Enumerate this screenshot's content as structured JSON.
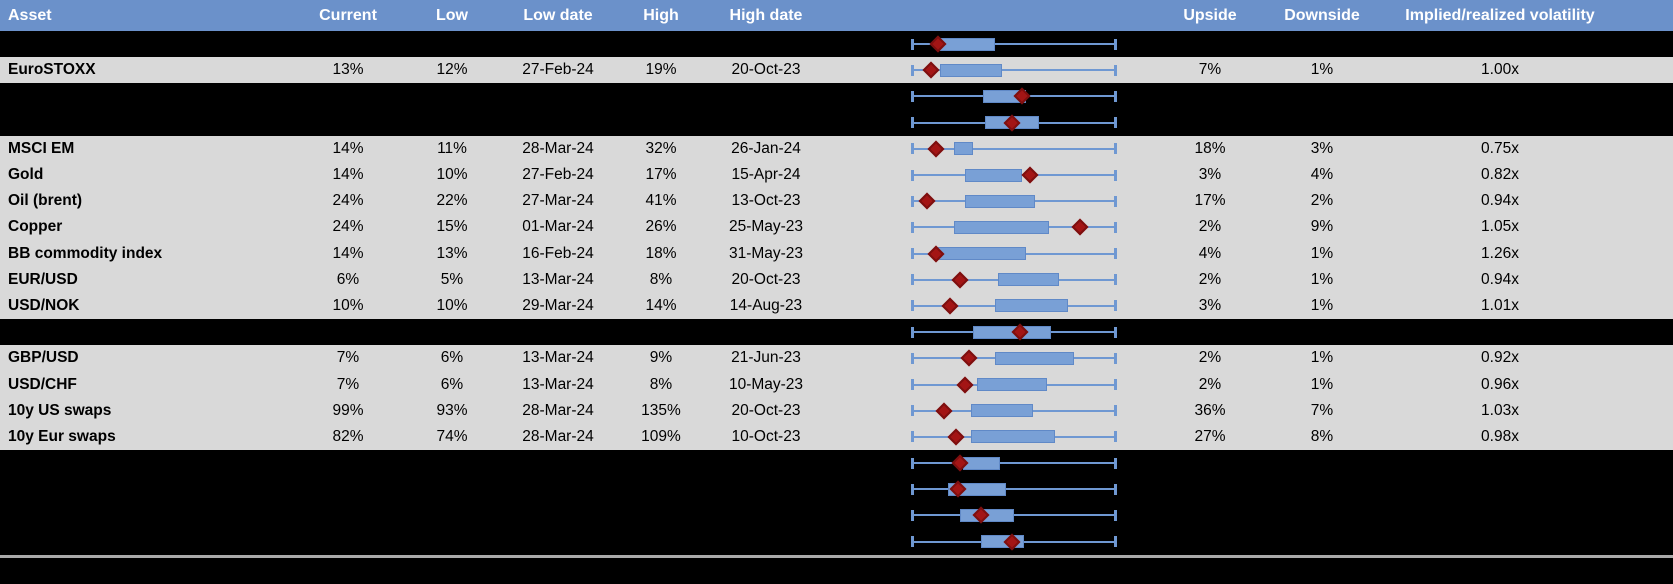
{
  "header": {
    "columns": [
      "Asset",
      "Current",
      "Low",
      "Low date",
      "High",
      "High date",
      "Upside",
      "Downside",
      "Implied/realized volatility"
    ]
  },
  "colors": {
    "header_bg": "#6b91ca",
    "row_gray": "#d9d9d9",
    "row_black": "#000000",
    "whisker_blue": "#6f98d2",
    "box_blue": "#79a0d6",
    "box_border": "#6089c7",
    "diamond_red": "#a31515",
    "diamond_border": "#7d0f0f",
    "divider_gray": "#a9a9a9",
    "header_text": "#ffffff",
    "body_text": "#000000"
  },
  "chart_data": {
    "type": "table",
    "title": "",
    "columns": [
      "Asset",
      "Current",
      "Low",
      "Low date",
      "High",
      "High date",
      "Upside",
      "Downside",
      "Implied/realized volatility"
    ],
    "boxplot_note": "Each row has a horizontal box plot: whisker spans the full range (normalized 0-1), blue box = q1-q3, red diamond = marker position.",
    "rows": [
      {
        "kind": "chart",
        "box": {
          "lo": 0,
          "q1": 0.14,
          "q3": 0.41,
          "hi": 1,
          "marker": 0.13
        }
      },
      {
        "kind": "data",
        "asset": "EuroSTOXX",
        "current": "13%",
        "low": "12%",
        "low_date": "27-Feb-24",
        "high": "19%",
        "high_date": "20-Oct-23",
        "upside": "7%",
        "downside": "1%",
        "iv_rv": "1.00x",
        "box": {
          "lo": 0,
          "q1": 0.14,
          "q3": 0.44,
          "hi": 1,
          "marker": 0.095
        }
      },
      {
        "kind": "chart",
        "box": {
          "lo": 0,
          "q1": 0.35,
          "q3": 0.56,
          "hi": 1,
          "marker": 0.54
        }
      },
      {
        "kind": "chart",
        "box": {
          "lo": 0,
          "q1": 0.36,
          "q3": 0.62,
          "hi": 1,
          "marker": 0.49
        }
      },
      {
        "kind": "data",
        "asset": "MSCI EM",
        "current": "14%",
        "low": "11%",
        "low_date": "28-Mar-24",
        "high": "32%",
        "high_date": "26-Jan-24",
        "upside": "18%",
        "downside": "3%",
        "iv_rv": "0.75x",
        "box": {
          "lo": 0,
          "q1": 0.21,
          "q3": 0.3,
          "hi": 1,
          "marker": 0.12
        }
      },
      {
        "kind": "data",
        "asset": "Gold",
        "current": "14%",
        "low": "10%",
        "low_date": "27-Feb-24",
        "high": "17%",
        "high_date": "15-Apr-24",
        "upside": "3%",
        "downside": "4%",
        "iv_rv": "0.82x",
        "box": {
          "lo": 0,
          "q1": 0.26,
          "q3": 0.54,
          "hi": 1,
          "marker": 0.58
        }
      },
      {
        "kind": "data",
        "asset": "Oil (brent)",
        "current": "24%",
        "low": "22%",
        "low_date": "27-Mar-24",
        "high": "41%",
        "high_date": "13-Oct-23",
        "upside": "17%",
        "downside": "2%",
        "iv_rv": "0.94x",
        "box": {
          "lo": 0,
          "q1": 0.26,
          "q3": 0.6,
          "hi": 1,
          "marker": 0.08
        }
      },
      {
        "kind": "data",
        "asset": "Copper",
        "current": "24%",
        "low": "15%",
        "low_date": "01-Mar-24",
        "high": "26%",
        "high_date": "25-May-23",
        "upside": "2%",
        "downside": "9%",
        "iv_rv": "1.05x",
        "box": {
          "lo": 0,
          "q1": 0.21,
          "q3": 0.67,
          "hi": 1,
          "marker": 0.82
        }
      },
      {
        "kind": "data",
        "asset": "BB commodity index",
        "current": "14%",
        "low": "13%",
        "low_date": "16-Feb-24",
        "high": "18%",
        "high_date": "31-May-23",
        "upside": "4%",
        "downside": "1%",
        "iv_rv": "1.26x",
        "box": {
          "lo": 0,
          "q1": 0.13,
          "q3": 0.56,
          "hi": 1,
          "marker": 0.12
        }
      },
      {
        "kind": "data",
        "asset": "EUR/USD",
        "current": "6%",
        "low": "5%",
        "low_date": "13-Mar-24",
        "high": "8%",
        "high_date": "20-Oct-23",
        "upside": "2%",
        "downside": "1%",
        "iv_rv": "0.94x",
        "box": {
          "lo": 0,
          "q1": 0.42,
          "q3": 0.72,
          "hi": 1,
          "marker": 0.24
        }
      },
      {
        "kind": "data",
        "asset": "USD/NOK",
        "current": "10%",
        "low": "10%",
        "low_date": "29-Mar-24",
        "high": "14%",
        "high_date": "14-Aug-23",
        "upside": "3%",
        "downside": "1%",
        "iv_rv": "1.01x",
        "box": {
          "lo": 0,
          "q1": 0.41,
          "q3": 0.76,
          "hi": 1,
          "marker": 0.19
        }
      },
      {
        "kind": "chart",
        "box": {
          "lo": 0,
          "q1": 0.3,
          "q3": 0.68,
          "hi": 1,
          "marker": 0.53
        }
      },
      {
        "kind": "data",
        "asset": "GBP/USD",
        "current": "7%",
        "low": "6%",
        "low_date": "13-Mar-24",
        "high": "9%",
        "high_date": "21-Jun-23",
        "upside": "2%",
        "downside": "1%",
        "iv_rv": "0.92x",
        "box": {
          "lo": 0,
          "q1": 0.41,
          "q3": 0.79,
          "hi": 1,
          "marker": 0.28
        }
      },
      {
        "kind": "data",
        "asset": "USD/CHF",
        "current": "7%",
        "low": "6%",
        "low_date": "13-Mar-24",
        "high": "8%",
        "high_date": "10-May-23",
        "upside": "2%",
        "downside": "1%",
        "iv_rv": "0.96x",
        "box": {
          "lo": 0,
          "q1": 0.32,
          "q3": 0.66,
          "hi": 1,
          "marker": 0.26
        }
      },
      {
        "kind": "data",
        "asset": "10y US swaps",
        "current": "99%",
        "low": "93%",
        "low_date": "28-Mar-24",
        "high": "135%",
        "high_date": "20-Oct-23",
        "upside": "36%",
        "downside": "7%",
        "iv_rv": "1.03x",
        "box": {
          "lo": 0,
          "q1": 0.29,
          "q3": 0.59,
          "hi": 1,
          "marker": 0.16
        }
      },
      {
        "kind": "data",
        "asset": "10y Eur swaps",
        "current": "82%",
        "low": "74%",
        "low_date": "28-Mar-24",
        "high": "109%",
        "high_date": "10-Oct-23",
        "upside": "27%",
        "downside": "8%",
        "iv_rv": "0.98x",
        "box": {
          "lo": 0,
          "q1": 0.29,
          "q3": 0.7,
          "hi": 1,
          "marker": 0.22
        }
      },
      {
        "kind": "chart",
        "box": {
          "lo": 0,
          "q1": 0.25,
          "q3": 0.43,
          "hi": 1,
          "marker": 0.24
        }
      },
      {
        "kind": "chart",
        "box": {
          "lo": 0,
          "q1": 0.18,
          "q3": 0.46,
          "hi": 1,
          "marker": 0.23
        }
      },
      {
        "kind": "chart",
        "box": {
          "lo": 0,
          "q1": 0.24,
          "q3": 0.5,
          "hi": 1,
          "marker": 0.34
        }
      },
      {
        "kind": "chart",
        "box": {
          "lo": 0,
          "q1": 0.34,
          "q3": 0.55,
          "hi": 1,
          "marker": 0.49
        }
      }
    ]
  }
}
